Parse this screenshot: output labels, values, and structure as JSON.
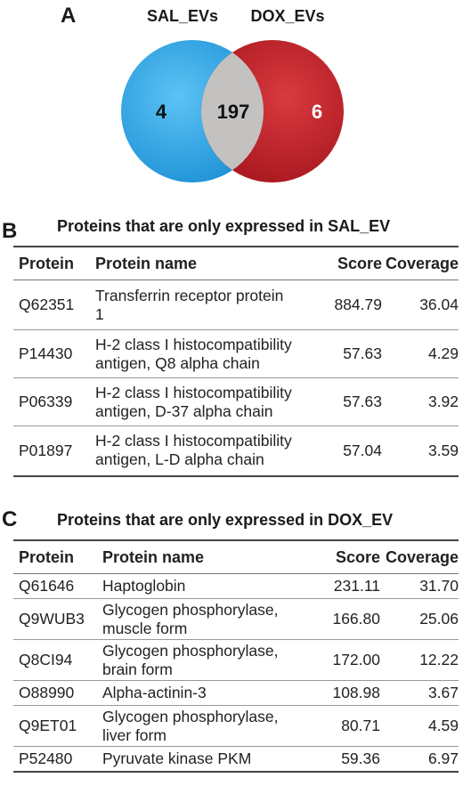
{
  "venn": {
    "panel_label": "A",
    "left_set_label": "SAL_EVs",
    "right_set_label": "DOX_EVs",
    "left_only": "4",
    "intersection": "197",
    "right_only": "6",
    "colors": {
      "left": "#29a3e6",
      "right": "#c8202b",
      "intersection": "#c4c2c0"
    }
  },
  "table_b": {
    "panel_label": "B",
    "title": "Proteins that are only expressed in SAL_EV",
    "headers": [
      "Protein",
      "Protein name",
      "Score",
      "Coverage"
    ],
    "rows": [
      {
        "protein": "Q62351",
        "name_line1": "Transferrin receptor protein",
        "name_line2": "1",
        "score": "884.79",
        "coverage": "36.04"
      },
      {
        "protein": "P14430",
        "name_line1": "H-2 class I histocompatibility",
        "name_line2": "antigen, Q8 alpha chain",
        "score": "57.63",
        "coverage": "4.29"
      },
      {
        "protein": "P06339",
        "name_line1": "H-2 class I histocompatibility",
        "name_line2": "antigen, D-37 alpha chain",
        "score": "57.63",
        "coverage": "3.92"
      },
      {
        "protein": "P01897",
        "name_line1": "H-2 class I histocompatibility",
        "name_line2": "antigen, L-D alpha chain",
        "score": "57.04",
        "coverage": "3.59"
      }
    ]
  },
  "table_c": {
    "panel_label": "C",
    "title": "Proteins that are only expressed in DOX_EV",
    "headers": [
      "Protein",
      "Protein name",
      "Score",
      "Coverage"
    ],
    "rows": [
      {
        "protein": "Q61646",
        "name_line1": "Haptoglobin",
        "name_line2": "",
        "score": "231.11",
        "coverage": "31.70"
      },
      {
        "protein": "Q9WUB3",
        "name_line1": "Glycogen phosphorylase,",
        "name_line2": "muscle form",
        "score": "166.80",
        "coverage": "25.06"
      },
      {
        "protein": "Q8CI94",
        "name_line1": "Glycogen phosphorylase,",
        "name_line2": "brain form",
        "score": "172.00",
        "coverage": "12.22"
      },
      {
        "protein": "O88990",
        "name_line1": "Alpha-actinin-3",
        "name_line2": "",
        "score": "108.98",
        "coverage": "3.67"
      },
      {
        "protein": "Q9ET01",
        "name_line1": "Glycogen phosphorylase,",
        "name_line2": "liver form",
        "score": "80.71",
        "coverage": "4.59"
      },
      {
        "protein": "P52480",
        "name_line1": "Pyruvate kinase PKM",
        "name_line2": "",
        "score": "59.36",
        "coverage": "6.97"
      }
    ]
  }
}
